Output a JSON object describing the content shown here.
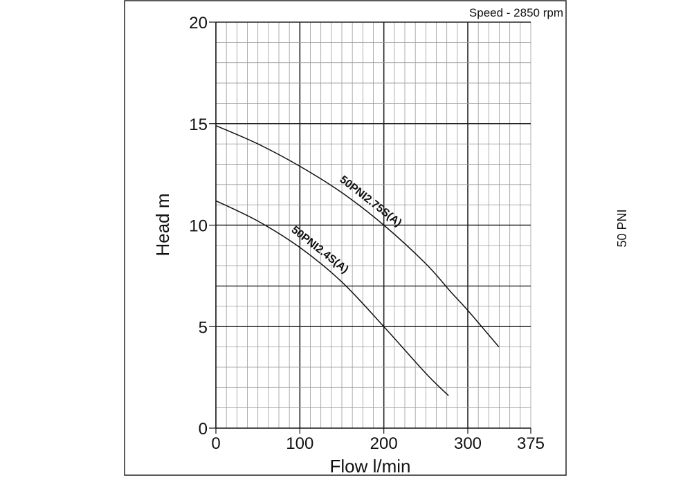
{
  "chart_data": {
    "type": "line",
    "annotation": "Speed - 2850 rpm",
    "side_label": "50 PNI",
    "xlabel": "Flow l/min",
    "ylabel": "Head m",
    "xlim": [
      0,
      375
    ],
    "ylim": [
      0,
      20
    ],
    "x_ticks": [
      0,
      100,
      200,
      300,
      375
    ],
    "y_ticks": [
      0,
      5,
      10,
      15,
      20
    ],
    "grid": true,
    "series": [
      {
        "name": "50PNI2.75S(A)",
        "x": [
          0,
          50,
          100,
          150,
          200,
          250,
          280,
          300,
          337
        ],
        "y": [
          14.9,
          14.0,
          12.9,
          11.6,
          10.0,
          8.1,
          6.7,
          5.8,
          4.0
        ]
      },
      {
        "name": "50PNI2.4S(A)",
        "x": [
          0,
          50,
          100,
          150,
          200,
          250,
          277
        ],
        "y": [
          11.2,
          10.2,
          8.9,
          7.2,
          5.0,
          2.7,
          1.6
        ]
      }
    ]
  }
}
